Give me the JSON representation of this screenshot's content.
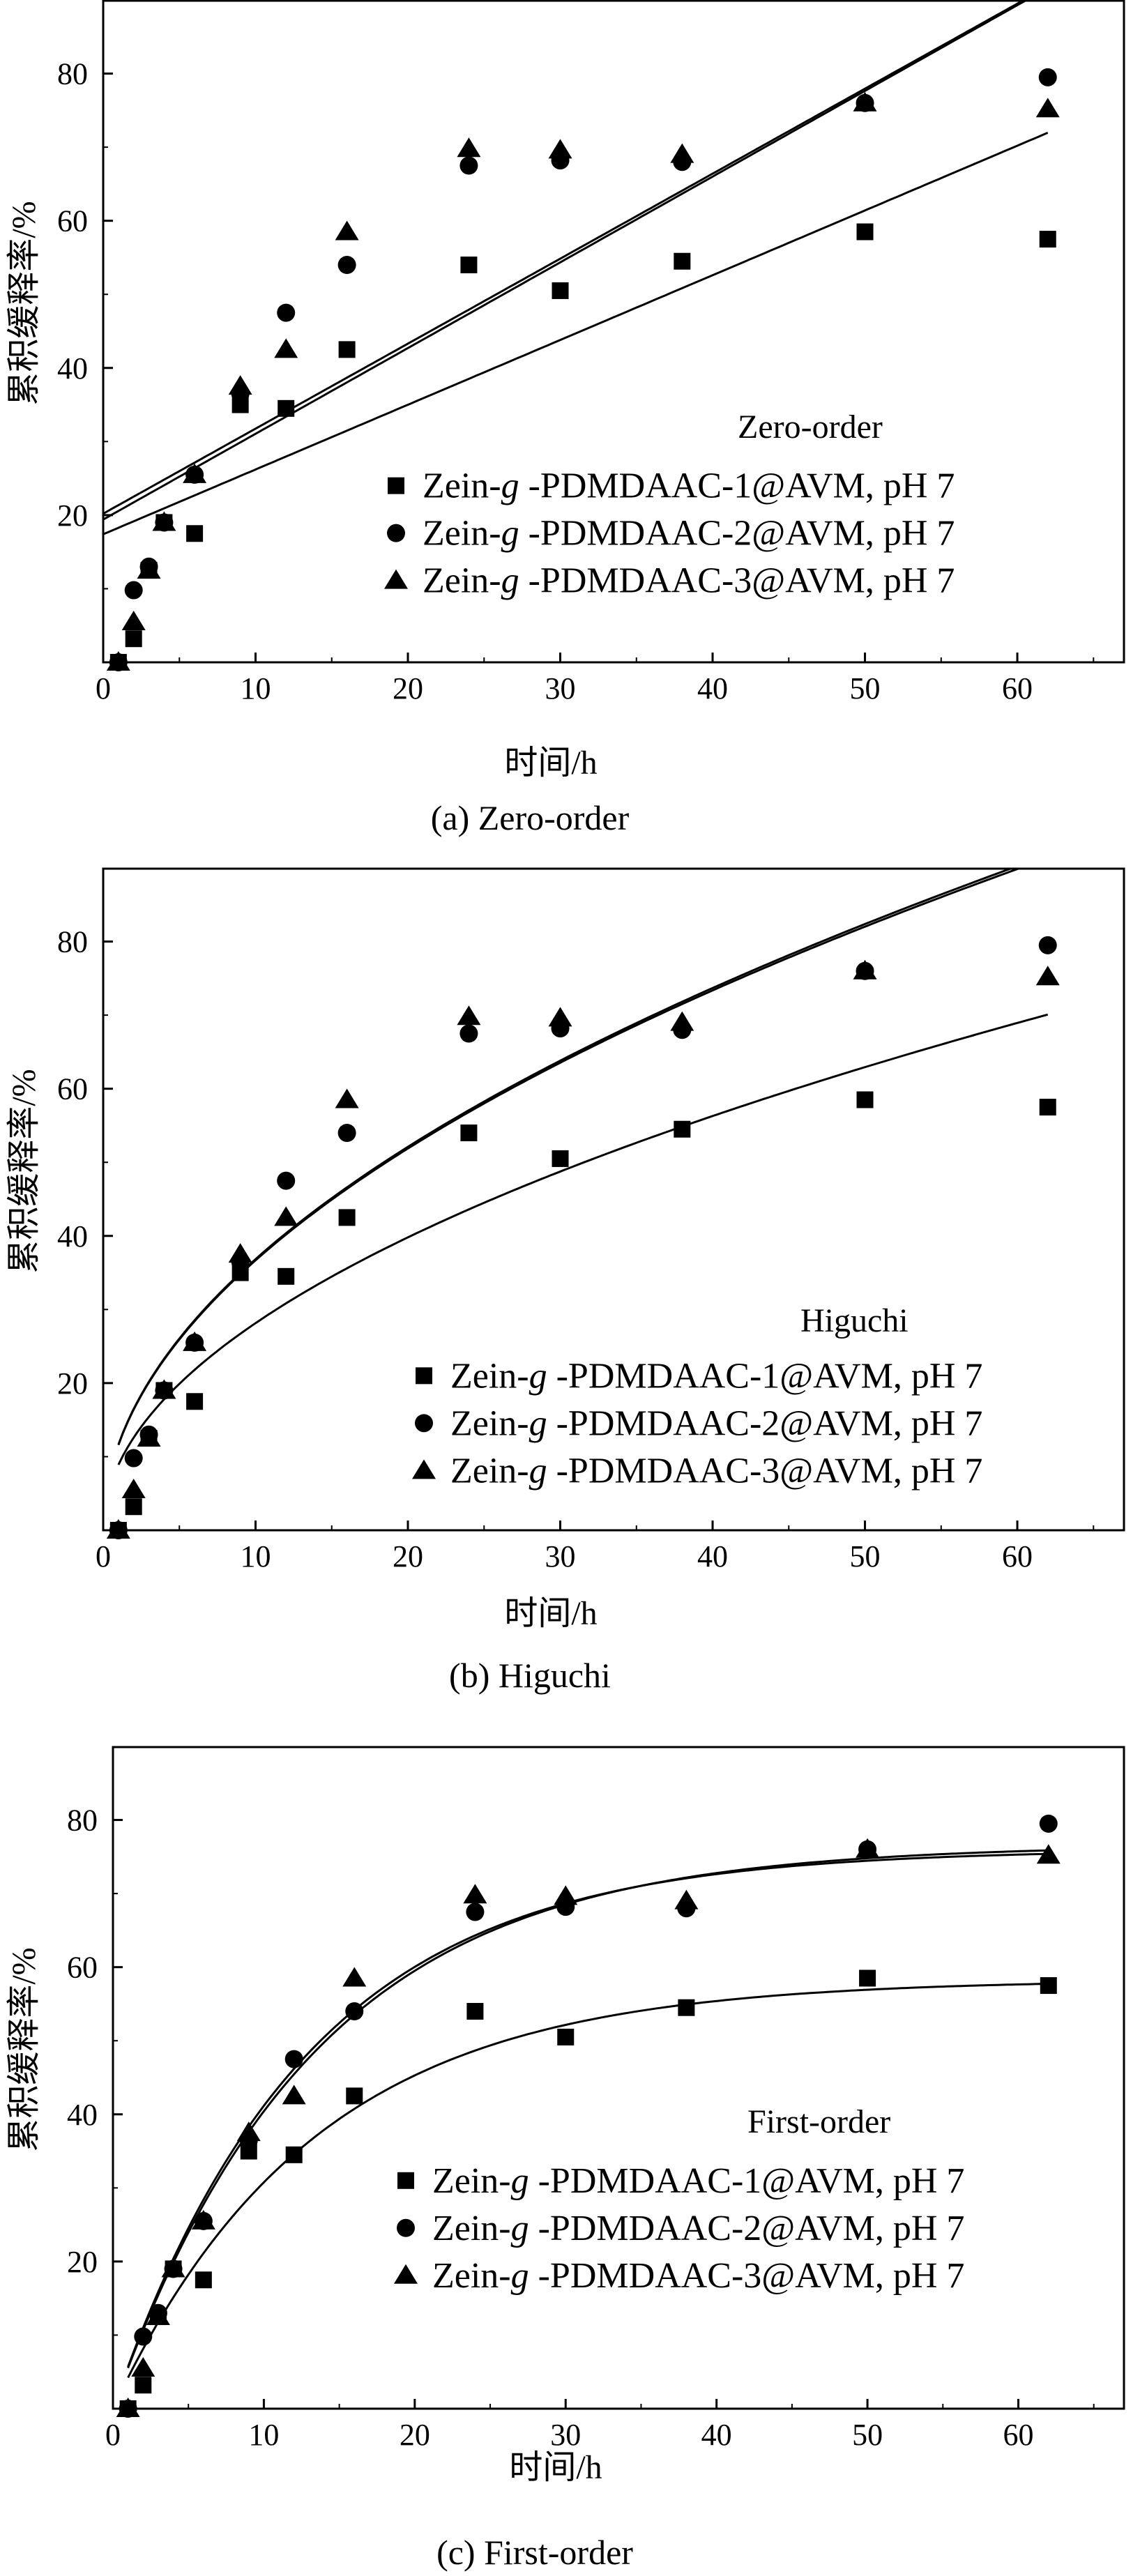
{
  "chart_data": [
    {
      "type": "scatter",
      "panel_id": "a",
      "model": "zero",
      "caption": "(a) Zero-order",
      "model_label": "Zero-order",
      "xlabel": "时间/h",
      "ylabel": "累积缓释率/%",
      "xlim": [
        0,
        67
      ],
      "ylim": [
        0,
        90
      ],
      "xticks": [
        0,
        10,
        20,
        30,
        40,
        50,
        60
      ],
      "yticks": [
        20,
        40,
        60,
        80
      ],
      "grid": false,
      "legend_position": "lower-right",
      "x": [
        1,
        2,
        3,
        4,
        6,
        9,
        12,
        16,
        24,
        30,
        38,
        50,
        62
      ],
      "series": [
        {
          "name": "Zein-g-PDMDAAC-1@AVM, pH 7",
          "label_main": "Zein-",
          "label_italic": "g",
          "label_rest": " -PDMDAAC-1@AVM, pH 7",
          "marker": "square",
          "values": [
            0,
            3.2,
            12.5,
            19,
            17.5,
            35,
            34.5,
            42.5,
            54,
            50.5,
            54.5,
            58.5,
            57.5
          ],
          "fit": {
            "a": 17.4,
            "b": 0.88
          }
        },
        {
          "name": "Zein-g-PDMDAAC-2@AVM, pH 7",
          "label_main": "Zein-",
          "label_italic": "g",
          "label_rest": " -PDMDAAC-2@AVM, pH 7",
          "marker": "circle",
          "values": [
            0,
            9.8,
            13,
            19,
            25.5,
            36.5,
            47.5,
            54,
            67.5,
            68.2,
            68,
            76,
            79.5
          ],
          "fit": {
            "a": 19.4,
            "b": 1.165
          }
        },
        {
          "name": "Zein-g-PDMDAAC-3@AVM, pH 7",
          "label_main": "Zein-",
          "label_italic": "g",
          "label_rest": " -PDMDAAC-3@AVM, pH 7",
          "marker": "triangle",
          "values": [
            0,
            5.5,
            12.5,
            19,
            25.5,
            37.5,
            42.5,
            58.5,
            69.8,
            69.6,
            69,
            76,
            75.2
          ],
          "fit": {
            "a": 20.2,
            "b": 1.155
          }
        }
      ]
    },
    {
      "type": "scatter",
      "panel_id": "b",
      "model": "higuchi",
      "caption": "(b) Higuchi",
      "model_label": "Higuchi",
      "xlabel": "时间/h",
      "ylabel": "累积缓释率/%",
      "xlim": [
        0,
        67
      ],
      "ylim": [
        0,
        90
      ],
      "xticks": [
        0,
        10,
        20,
        30,
        40,
        50,
        60
      ],
      "yticks": [
        20,
        40,
        60,
        80
      ],
      "grid": false,
      "legend_position": "lower-right",
      "x": [
        1,
        2,
        3,
        4,
        6,
        9,
        12,
        16,
        24,
        30,
        38,
        50,
        62
      ],
      "series": [
        {
          "name": "Zein-g-PDMDAAC-1@AVM, pH 7",
          "label_main": "Zein-",
          "label_italic": "g",
          "label_rest": " -PDMDAAC-1@AVM, pH 7",
          "marker": "square",
          "values": [
            0,
            3.2,
            12.5,
            19,
            17.5,
            35,
            34.5,
            42.5,
            54,
            50.5,
            54.5,
            58.5,
            57.5
          ],
          "fit": {
            "k": 8.9
          }
        },
        {
          "name": "Zein-g-PDMDAAC-2@AVM, pH 7",
          "label_main": "Zein-",
          "label_italic": "g",
          "label_rest": " -PDMDAAC-2@AVM, pH 7",
          "marker": "circle",
          "values": [
            0,
            9.8,
            13,
            19,
            25.5,
            36.5,
            47.5,
            54,
            67.5,
            68.2,
            68,
            76,
            79.5
          ],
          "fit": {
            "k": 11.6
          }
        },
        {
          "name": "Zein-g-PDMDAAC-3@AVM, pH 7",
          "label_main": "Zein-",
          "label_italic": "g",
          "label_rest": " -PDMDAAC-3@AVM, pH 7",
          "marker": "triangle",
          "values": [
            0,
            5.5,
            12.5,
            19,
            25.5,
            37.5,
            42.5,
            58.5,
            69.8,
            69.6,
            69,
            76,
            75.2
          ],
          "fit": {
            "k": 11.65
          }
        }
      ]
    },
    {
      "type": "scatter",
      "panel_id": "c",
      "model": "first",
      "caption": "(c) First-order",
      "model_label": "First-order",
      "xlabel": "时间/h",
      "ylabel": "累积缓释率/%",
      "xlim": [
        0,
        67
      ],
      "ylim": [
        0,
        90
      ],
      "xticks": [
        0,
        10,
        20,
        30,
        40,
        50,
        60
      ],
      "yticks": [
        20,
        40,
        60,
        80
      ],
      "grid": false,
      "legend_position": "lower-right",
      "x": [
        1,
        2,
        3,
        4,
        6,
        9,
        12,
        16,
        24,
        30,
        38,
        50,
        62
      ],
      "series": [
        {
          "name": "Zein-g-PDMDAAC-1@AVM, pH 7",
          "label_main": "Zein-",
          "label_italic": "g",
          "label_rest": " -PDMDAAC-1@AVM, pH 7",
          "marker": "square",
          "values": [
            0,
            3.2,
            12.5,
            19,
            17.5,
            35,
            34.5,
            42.5,
            54,
            50.5,
            54.5,
            58.5,
            57.5
          ],
          "fit": {
            "A": 58.3,
            "k": 0.075
          }
        },
        {
          "name": "Zein-g-PDMDAAC-2@AVM, pH 7",
          "label_main": "Zein-",
          "label_italic": "g",
          "label_rest": " -PDMDAAC-2@AVM, pH 7",
          "marker": "circle",
          "values": [
            0,
            9.8,
            13,
            19,
            25.5,
            36.5,
            47.5,
            54,
            67.5,
            68.2,
            68,
            76,
            79.5
          ],
          "fit": {
            "A": 76.6,
            "k": 0.075
          }
        },
        {
          "name": "Zein-g-PDMDAAC-3@AVM, pH 7",
          "label_main": "Zein-",
          "label_italic": "g",
          "label_rest": " -PDMDAAC-3@AVM, pH 7",
          "marker": "triangle",
          "values": [
            0,
            5.5,
            12.5,
            19,
            25.5,
            37.5,
            42.5,
            58.5,
            69.8,
            69.6,
            69,
            76,
            75.2
          ],
          "fit": {
            "A": 76.0,
            "k": 0.078
          }
        }
      ]
    }
  ]
}
